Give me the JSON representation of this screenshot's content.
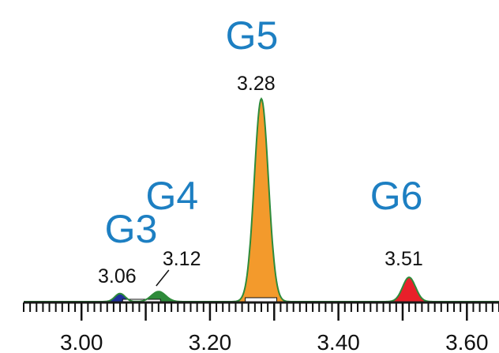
{
  "chart_data": {
    "type": "area",
    "title": "",
    "xlabel": "",
    "ylabel": "",
    "xlim": [
      2.91,
      3.65
    ],
    "ylim": [
      0,
      100
    ],
    "grid": false,
    "x_ticks": [
      3.0,
      3.2,
      3.4,
      3.6
    ],
    "x_tick_labels": [
      "3.00",
      "3.20",
      "3.40",
      "3.60"
    ],
    "peaks": [
      {
        "group": "G3",
        "retention_time": 3.06,
        "rt_label": "3.06",
        "relative_height": 4,
        "fill": "#1f2f9a",
        "group_color": "#1d7fc2"
      },
      {
        "group": "G4",
        "retention_time": 3.12,
        "rt_label": "3.12",
        "relative_height": 5,
        "fill": "#2e8b3a",
        "group_color": "#1d7fc2"
      },
      {
        "group": "G5",
        "retention_time": 3.28,
        "rt_label": "3.28",
        "relative_height": 100,
        "fill": "#f39a2c",
        "group_color": "#1d7fc2"
      },
      {
        "group": "G6",
        "retention_time": 3.51,
        "rt_label": "3.51",
        "relative_height": 12,
        "fill": "#e8202a",
        "group_color": "#1d7fc2"
      }
    ],
    "trace_color": "#2e8b3a",
    "baseline_color": "#1a1a1a"
  }
}
